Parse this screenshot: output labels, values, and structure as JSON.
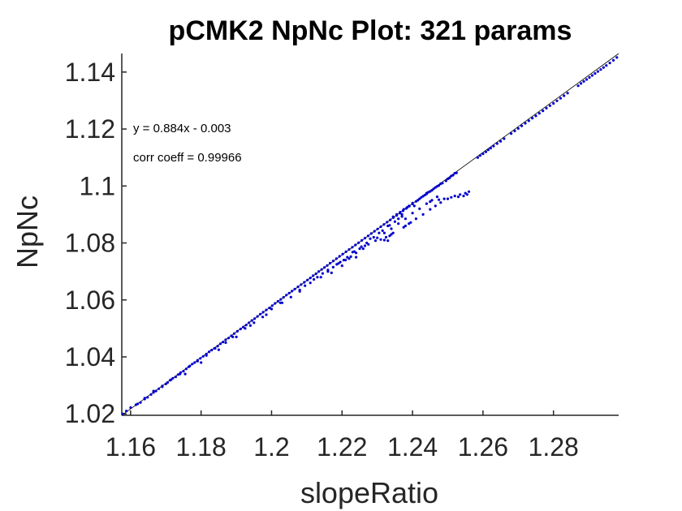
{
  "chart_data": {
    "type": "scatter",
    "title": "pCMK2 NpNc Plot: 321 params",
    "xlabel": "slopeRatio",
    "ylabel": "NpNc",
    "xlim": [
      1.1575,
      1.2985
    ],
    "ylim": [
      1.0195,
      1.1465
    ],
    "xticks": [
      1.16,
      1.18,
      1.2,
      1.22,
      1.24,
      1.26,
      1.28
    ],
    "xtick_labels": [
      "1.16",
      "1.18",
      "1.2",
      "1.22",
      "1.24",
      "1.26",
      "1.28"
    ],
    "yticks": [
      1.02,
      1.04,
      1.06,
      1.08,
      1.1,
      1.12,
      1.14
    ],
    "ytick_labels": [
      "1.02",
      "1.04",
      "1.06",
      "1.08",
      "1.1",
      "1.12",
      "1.14"
    ],
    "annotations": [
      "y = 0.884x - 0.003",
      "corr coeff = 0.99966"
    ],
    "fit_line": {
      "slope": 0.884,
      "intercept": -0.003,
      "x_range": [
        1.1575,
        1.2985
      ]
    },
    "point_color": "#0000cc",
    "line_color": "#000000",
    "grid": false,
    "series": [
      {
        "points": [
          [
            1.1578,
            1.02
          ],
          [
            1.1588,
            1.021
          ],
          [
            1.162,
            1.0235
          ],
          [
            1.1628,
            1.024
          ],
          [
            1.164,
            1.0252
          ],
          [
            1.1648,
            1.0258
          ],
          [
            1.1658,
            1.0268
          ],
          [
            1.1665,
            1.0275
          ],
          [
            1.1672,
            1.028
          ],
          [
            1.168,
            1.0288
          ],
          [
            1.169,
            1.0295
          ],
          [
            1.17,
            1.0305
          ],
          [
            1.1705,
            1.031
          ],
          [
            1.1712,
            1.0318
          ],
          [
            1.172,
            1.0325
          ],
          [
            1.1728,
            1.033
          ],
          [
            1.1735,
            1.0338
          ],
          [
            1.1742,
            1.0345
          ],
          [
            1.175,
            1.035
          ],
          [
            1.1758,
            1.0358
          ],
          [
            1.1768,
            1.0368
          ],
          [
            1.1775,
            1.0375
          ],
          [
            1.1782,
            1.038
          ],
          [
            1.179,
            1.0388
          ],
          [
            1.1798,
            1.0395
          ],
          [
            1.1806,
            1.0402
          ],
          [
            1.1815,
            1.041
          ],
          [
            1.1823,
            1.0418
          ],
          [
            1.183,
            1.0424
          ],
          [
            1.1838,
            1.043
          ],
          [
            1.1847,
            1.0438
          ],
          [
            1.1855,
            1.0446
          ],
          [
            1.1862,
            1.0452
          ],
          [
            1.187,
            1.046
          ],
          [
            1.1878,
            1.0466
          ],
          [
            1.1886,
            1.0474
          ],
          [
            1.1894,
            1.0482
          ],
          [
            1.1903,
            1.049
          ],
          [
            1.1912,
            1.0498
          ],
          [
            1.192,
            1.0505
          ],
          [
            1.1928,
            1.0512
          ],
          [
            1.1936,
            1.052
          ],
          [
            1.1944,
            1.0528
          ],
          [
            1.1952,
            1.0534
          ],
          [
            1.196,
            1.0542
          ],
          [
            1.1968,
            1.055
          ],
          [
            1.1976,
            1.0557
          ],
          [
            1.1985,
            1.0565
          ],
          [
            1.1994,
            1.0572
          ],
          [
            1.2002,
            1.058
          ],
          [
            1.201,
            1.0588
          ],
          [
            1.2018,
            1.0595
          ],
          [
            1.2026,
            1.0602
          ],
          [
            1.2034,
            1.0609
          ],
          [
            1.2042,
            1.0617
          ],
          [
            1.205,
            1.0624
          ],
          [
            1.2058,
            1.0631
          ],
          [
            1.2066,
            1.0638
          ],
          [
            1.2075,
            1.0646
          ],
          [
            1.2084,
            1.0654
          ],
          [
            1.2093,
            1.0662
          ],
          [
            1.2102,
            1.067
          ],
          [
            1.211,
            1.0677
          ],
          [
            1.2118,
            1.0685
          ],
          [
            1.2126,
            1.0692
          ],
          [
            1.2134,
            1.07
          ],
          [
            1.2142,
            1.0707
          ],
          [
            1.215,
            1.0714
          ],
          [
            1.2158,
            1.0721
          ],
          [
            1.2166,
            1.0729
          ],
          [
            1.2175,
            1.0737
          ],
          [
            1.2184,
            1.0745
          ],
          [
            1.2193,
            1.0753
          ],
          [
            1.2202,
            1.0761
          ],
          [
            1.2211,
            1.0769
          ],
          [
            1.222,
            1.0777
          ],
          [
            1.2229,
            1.0785
          ],
          [
            1.2238,
            1.0793
          ],
          [
            1.2247,
            1.0801
          ],
          [
            1.2256,
            1.0809
          ],
          [
            1.2265,
            1.0817
          ],
          [
            1.2274,
            1.0825
          ],
          [
            1.2283,
            1.0833
          ],
          [
            1.2292,
            1.0841
          ],
          [
            1.2301,
            1.0849
          ],
          [
            1.231,
            1.0857
          ],
          [
            1.2319,
            1.0865
          ],
          [
            1.2328,
            1.0873
          ],
          [
            1.2337,
            1.0881
          ],
          [
            1.2346,
            1.0889
          ],
          [
            1.2355,
            1.0897
          ],
          [
            1.2364,
            1.0905
          ],
          [
            1.2373,
            1.0913
          ],
          [
            1.2382,
            1.0921
          ],
          [
            1.2391,
            1.0929
          ],
          [
            1.24,
            1.0937
          ],
          [
            1.241,
            1.0946
          ],
          [
            1.242,
            1.0955
          ],
          [
            1.243,
            1.0964
          ],
          [
            1.244,
            1.0972
          ],
          [
            1.245,
            1.0981
          ],
          [
            1.246,
            1.099
          ],
          [
            1.247,
            1.0999
          ],
          [
            1.248,
            1.1008
          ],
          [
            1.25,
            1.1025
          ],
          [
            1.251,
            1.1035
          ],
          [
            1.252,
            1.1045
          ],
          [
            1.2585,
            1.11
          ],
          [
            1.2592,
            1.1107
          ],
          [
            1.26,
            1.1113
          ],
          [
            1.2608,
            1.112
          ],
          [
            1.2615,
            1.1127
          ],
          [
            1.2622,
            1.1133
          ],
          [
            1.263,
            1.114
          ],
          [
            1.264,
            1.1149
          ],
          [
            1.265,
            1.1157
          ],
          [
            1.266,
            1.1166
          ],
          [
            1.268,
            1.1184
          ],
          [
            1.269,
            1.1193
          ],
          [
            1.27,
            1.1202
          ],
          [
            1.271,
            1.1211
          ],
          [
            1.272,
            1.122
          ],
          [
            1.273,
            1.1229
          ],
          [
            1.274,
            1.1238
          ],
          [
            1.275,
            1.1246
          ],
          [
            1.276,
            1.1255
          ],
          [
            1.277,
            1.1264
          ],
          [
            1.278,
            1.1273
          ],
          [
            1.279,
            1.1282
          ],
          [
            1.28,
            1.129
          ],
          [
            1.281,
            1.1299
          ],
          [
            1.282,
            1.1308
          ],
          [
            1.283,
            1.1317
          ],
          [
            1.284,
            1.1326
          ],
          [
            1.287,
            1.1352
          ],
          [
            1.2878,
            1.136
          ],
          [
            1.2886,
            1.1367
          ],
          [
            1.2894,
            1.1374
          ],
          [
            1.2902,
            1.1381
          ],
          [
            1.291,
            1.1388
          ],
          [
            1.2918,
            1.1395
          ],
          [
            1.2926,
            1.1402
          ],
          [
            1.2934,
            1.1409
          ],
          [
            1.2942,
            1.1416
          ],
          [
            1.295,
            1.1423
          ],
          [
            1.296,
            1.1432
          ],
          [
            1.297,
            1.1441
          ],
          [
            1.298,
            1.1451
          ],
          [
            1.1755,
            1.034
          ],
          [
            1.18,
            1.038
          ],
          [
            1.185,
            1.0425
          ],
          [
            1.19,
            1.047
          ],
          [
            1.194,
            1.051
          ],
          [
            1.1985,
            1.0548
          ],
          [
            1.203,
            1.059
          ],
          [
            1.208,
            1.0635
          ],
          [
            1.213,
            1.068
          ],
          [
            1.216,
            1.0705
          ],
          [
            1.2185,
            1.0725
          ],
          [
            1.223,
            1.0768
          ],
          [
            1.228,
            1.0815
          ],
          [
            1.233,
            1.086
          ],
          [
            1.237,
            1.09
          ],
          [
            1.221,
            1.074
          ],
          [
            1.2225,
            1.0752
          ],
          [
            1.224,
            1.0765
          ],
          [
            1.226,
            1.078
          ],
          [
            1.2275,
            1.0795
          ],
          [
            1.23,
            1.0818
          ],
          [
            1.232,
            1.0835
          ],
          [
            1.234,
            1.085
          ],
          [
            1.236,
            1.0868
          ],
          [
            1.238,
            1.0885
          ],
          [
            1.24,
            1.0905
          ],
          [
            1.242,
            1.092
          ],
          [
            1.244,
            1.0938
          ],
          [
            1.2455,
            1.095
          ],
          [
            1.247,
            1.0962
          ],
          [
            1.2325,
            1.082
          ],
          [
            1.2335,
            1.0825
          ],
          [
            1.2345,
            1.0835
          ],
          [
            1.238,
            1.086
          ],
          [
            1.2395,
            1.0872
          ],
          [
            1.241,
            1.0885
          ],
          [
            1.243,
            1.09
          ],
          [
            1.245,
            1.0918
          ],
          [
            1.2465,
            1.093
          ],
          [
            1.248,
            1.0942
          ],
          [
            1.25,
            1.0955
          ],
          [
            1.252,
            1.0965
          ],
          [
            1.2535,
            1.097
          ],
          [
            1.255,
            1.0975
          ],
          [
            1.256,
            1.098
          ],
          [
            1.232,
            1.081
          ],
          [
            1.233,
            1.0808
          ],
          [
            1.234,
            1.083
          ],
          [
            1.2375,
            1.0855
          ],
          [
            1.239,
            1.0868
          ],
          [
            1.216,
            1.07
          ],
          [
            1.2175,
            1.0715
          ],
          [
            1.219,
            1.0728
          ],
          [
            1.2205,
            1.074
          ],
          [
            1.222,
            1.0745
          ],
          [
            1.225,
            1.078
          ],
          [
            1.2265,
            1.079
          ],
          [
            1.2295,
            1.0808
          ],
          [
            1.231,
            1.0812
          ],
          [
            1.211,
            1.066
          ],
          [
            1.214,
            1.068
          ],
          [
            1.217,
            1.0695
          ],
          [
            1.22,
            1.072
          ],
          [
            1.224,
            1.075
          ],
          [
            1.208,
            1.063
          ],
          [
            1.2055,
            1.061
          ],
          [
            1.2025,
            1.059
          ],
          [
            1.2,
            1.0568
          ],
          [
            1.1975,
            1.054
          ],
          [
            1.195,
            1.052
          ],
          [
            1.1925,
            1.05
          ],
          [
            1.189,
            1.047
          ],
          [
            1.187,
            1.045
          ],
          [
            1.184,
            1.043
          ],
          [
            1.1815,
            1.0405
          ],
          [
            1.179,
            1.0385
          ],
          [
            1.1765,
            1.0365
          ],
          [
            1.174,
            1.034
          ],
          [
            1.1715,
            1.032
          ],
          [
            1.169,
            1.0298
          ],
          [
            1.1665,
            1.028
          ],
          [
            1.164,
            1.0255
          ],
          [
            1.1615,
            1.0232
          ],
          [
            1.16,
            1.0222
          ],
          [
            1.2485,
            1.101
          ],
          [
            1.2495,
            1.1018
          ],
          [
            1.2505,
            1.1028
          ],
          [
            1.2515,
            1.1038
          ],
          [
            1.2525,
            1.1046
          ],
          [
            1.244,
            1.0975
          ],
          [
            1.2445,
            1.0978
          ],
          [
            1.2455,
            1.0985
          ],
          [
            1.2465,
            1.0995
          ],
          [
            1.2475,
            1.1002
          ],
          [
            1.239,
            1.093
          ],
          [
            1.24,
            1.094
          ],
          [
            1.2415,
            1.095
          ],
          [
            1.2425,
            1.096
          ],
          [
            1.2435,
            1.0968
          ],
          [
            1.2355,
            1.09
          ],
          [
            1.2365,
            1.0908
          ],
          [
            1.2375,
            1.0918
          ],
          [
            1.2385,
            1.0925
          ],
          [
            1.2345,
            1.0892
          ],
          [
            1.2405,
            1.093
          ],
          [
            1.245,
            1.0945
          ],
          [
            1.2475,
            1.0952
          ],
          [
            1.249,
            1.0955
          ],
          [
            1.251,
            1.096
          ],
          [
            1.253,
            1.0962
          ],
          [
            1.2545,
            1.0965
          ],
          [
            1.2555,
            1.097
          ],
          [
            1.2095,
            1.065
          ],
          [
            1.212,
            1.0672
          ],
          [
            1.2145,
            1.0693
          ],
          [
            1.2195,
            1.0733
          ],
          [
            1.2215,
            1.075
          ],
          [
            1.2235,
            1.077
          ],
          [
            1.2255,
            1.0787
          ],
          [
            1.227,
            1.08
          ],
          [
            1.229,
            1.082
          ],
          [
            1.2305,
            1.0835
          ],
          [
            1.2315,
            1.0843
          ],
          [
            1.2335,
            1.0862
          ],
          [
            1.235,
            1.0875
          ],
          [
            1.236,
            1.0885
          ],
          [
            1.237,
            1.0893
          ]
        ]
      }
    ]
  }
}
